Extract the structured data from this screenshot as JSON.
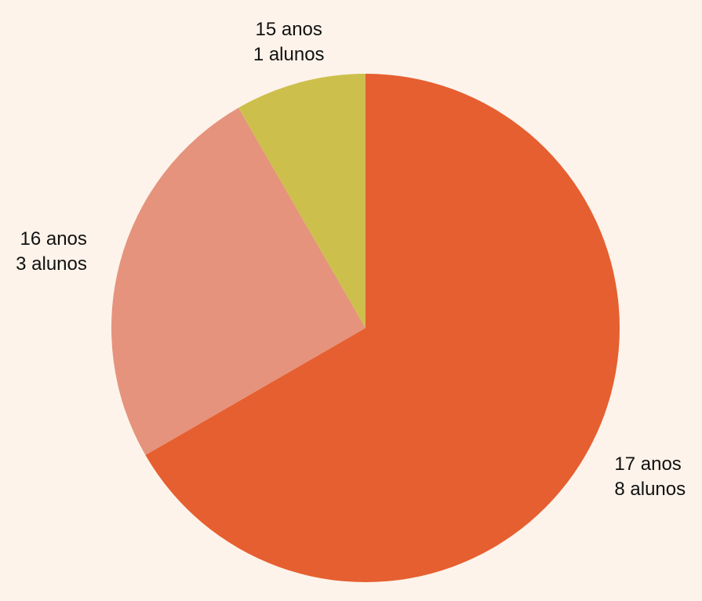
{
  "chart_data": {
    "type": "pie",
    "background": "#fdf3ea",
    "start": "top",
    "direction": "clockwise",
    "slices": [
      {
        "name": "17 anos",
        "value": 8,
        "value_label": "8 alunos",
        "color": "#e65f30"
      },
      {
        "name": "16 anos",
        "value": 3,
        "value_label": "3 alunos",
        "color": "#e5937c"
      },
      {
        "name": "15 anos",
        "value": 1,
        "value_label": "1 alunos",
        "color": "#cdbf4c"
      }
    ]
  }
}
